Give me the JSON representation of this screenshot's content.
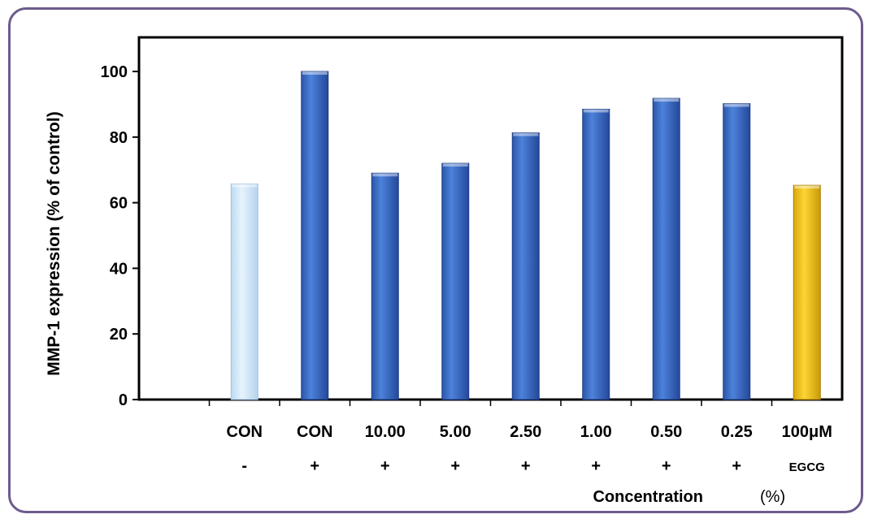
{
  "chart_data": {
    "type": "bar",
    "ylabel": "MMP-1 expression (% of control)",
    "xlabel": "Concentration",
    "xlabel_unit": "(%)",
    "ylim": [
      0,
      110
    ],
    "yticks": [
      0,
      20,
      40,
      60,
      80,
      100
    ],
    "categories": [
      "CON",
      "CON",
      "10.00",
      "5.00",
      "2.50",
      "1.00",
      "0.50",
      "0.25",
      "100μM"
    ],
    "treatment_row": [
      "-",
      "+",
      "+",
      "+",
      "+",
      "+",
      "+",
      "+",
      "EGCG"
    ],
    "values": [
      65.7,
      100,
      69,
      72,
      81.3,
      88.5,
      91.8,
      90.2,
      65.3
    ],
    "bar_colors": [
      "#cfe6f7",
      "#3a6ec8",
      "#3a6ec8",
      "#3a6ec8",
      "#3a6ec8",
      "#3a6ec8",
      "#3a6ec8",
      "#3a6ec8",
      "#f2c21b"
    ],
    "grid": false,
    "legend": "none"
  }
}
